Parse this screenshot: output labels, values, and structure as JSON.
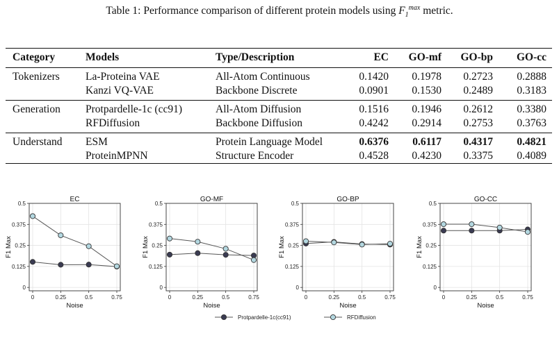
{
  "caption": {
    "prefix": "Table 1: Performance comparison of different protein models using ",
    "metric_base": "F",
    "metric_sub": "1",
    "metric_sup": "max",
    "suffix": " metric."
  },
  "table": {
    "headers": [
      "Category",
      "Models",
      "Type/Description",
      "EC",
      "GO-mf",
      "GO-bp",
      "GO-cc"
    ],
    "groups": [
      {
        "category": "Tokenizers",
        "rows": [
          {
            "model": "La-Proteina VAE",
            "type": "All-Atom Continuous",
            "values": [
              "0.1420",
              "0.1978",
              "0.2723",
              "0.2888"
            ],
            "bold": [
              false,
              false,
              false,
              false
            ]
          },
          {
            "model": "Kanzi VQ-VAE",
            "type": "Backbone Discrete",
            "values": [
              "0.0901",
              "0.1530",
              "0.2489",
              "0.3183"
            ],
            "bold": [
              false,
              false,
              false,
              false
            ]
          }
        ]
      },
      {
        "category": "Generation",
        "rows": [
          {
            "model": "Protpardelle-1c (cc91)",
            "type": "All-Atom Diffusion",
            "values": [
              "0.1516",
              "0.1946",
              "0.2612",
              "0.3380"
            ],
            "bold": [
              false,
              false,
              false,
              false
            ]
          },
          {
            "model": "RFDiffusion",
            "type": "Backbone Diffusion",
            "values": [
              "0.4242",
              "0.2914",
              "0.2753",
              "0.3763"
            ],
            "bold": [
              false,
              false,
              false,
              false
            ]
          }
        ]
      },
      {
        "category": "Understand",
        "rows": [
          {
            "model": "ESM",
            "type": "Protein Language Model",
            "values": [
              "0.6376",
              "0.6117",
              "0.4317",
              "0.4821"
            ],
            "bold": [
              true,
              true,
              true,
              true
            ]
          },
          {
            "model": "ProteinMPNN",
            "type": "Structure Encoder",
            "values": [
              "0.4528",
              "0.4230",
              "0.3375",
              "0.4089"
            ],
            "bold": [
              false,
              false,
              false,
              false
            ]
          }
        ]
      }
    ]
  },
  "chart_data": [
    {
      "type": "line",
      "title": "EC",
      "xlabel": "Noise",
      "ylabel": "F1 Max",
      "x": [
        0,
        0.25,
        0.5,
        0.75
      ],
      "ylim": [
        -0.02,
        0.5
      ],
      "xticks": [
        "0",
        "0.25",
        "0.5",
        "0.75"
      ],
      "yticks": [
        "0",
        "0.125",
        "0.25",
        "0.375",
        "0.5"
      ],
      "grid": true,
      "series": [
        {
          "name": "Protpardelle-1c(cc91)",
          "values": [
            0.152,
            0.135,
            0.136,
            0.124
          ],
          "color": "#3a3b52"
        },
        {
          "name": "RFDiffusion",
          "values": [
            0.424,
            0.31,
            0.245,
            0.126
          ],
          "color": "#b3d7e0"
        }
      ]
    },
    {
      "type": "line",
      "title": "GO-MF",
      "xlabel": "Noise",
      "ylabel": "F1 Max",
      "x": [
        0,
        0.25,
        0.5,
        0.75
      ],
      "ylim": [
        -0.02,
        0.5
      ],
      "xticks": [
        "0",
        "0.25",
        "0.5",
        "0.75"
      ],
      "yticks": [
        "0",
        "0.125",
        "0.25",
        "0.375",
        "0.5"
      ],
      "grid": true,
      "series": [
        {
          "name": "Protpardelle-1c(cc91)",
          "values": [
            0.195,
            0.204,
            0.194,
            0.19
          ],
          "color": "#3a3b52"
        },
        {
          "name": "RFDiffusion",
          "values": [
            0.291,
            0.272,
            0.23,
            0.163
          ],
          "color": "#b3d7e0"
        }
      ]
    },
    {
      "type": "line",
      "title": "GO-BP",
      "xlabel": "Noise",
      "ylabel": "F1 Max",
      "x": [
        0,
        0.25,
        0.5,
        0.75
      ],
      "ylim": [
        -0.02,
        0.5
      ],
      "xticks": [
        "0",
        "0.25",
        "0.5",
        "0.75"
      ],
      "yticks": [
        "0",
        "0.125",
        "0.25",
        "0.375",
        "0.5"
      ],
      "grid": true,
      "series": [
        {
          "name": "Protpardelle-1c(cc91)",
          "values": [
            0.261,
            0.271,
            0.258,
            0.255
          ],
          "color": "#3a3b52"
        },
        {
          "name": "RFDiffusion",
          "values": [
            0.275,
            0.268,
            0.255,
            0.26
          ],
          "color": "#b3d7e0"
        }
      ]
    },
    {
      "type": "line",
      "title": "GO-CC",
      "xlabel": "Noise",
      "ylabel": "F1 Max",
      "x": [
        0,
        0.25,
        0.5,
        0.75
      ],
      "ylim": [
        -0.02,
        0.5
      ],
      "xticks": [
        "0",
        "0.25",
        "0.5",
        "0.75"
      ],
      "yticks": [
        "0",
        "0.125",
        "0.25",
        "0.375",
        "0.5"
      ],
      "grid": true,
      "series": [
        {
          "name": "Protpardelle-1c(cc91)",
          "values": [
            0.338,
            0.338,
            0.338,
            0.345
          ],
          "color": "#3a3b52"
        },
        {
          "name": "RFDiffusion",
          "values": [
            0.376,
            0.376,
            0.356,
            0.33
          ],
          "color": "#b3d7e0"
        }
      ]
    }
  ],
  "legend": {
    "placement": "bottom-center",
    "items": [
      {
        "label": "Protpardelle-1c(cc91)",
        "color": "#3a3b52"
      },
      {
        "label": "RFDiffusion",
        "color": "#b3d7e0"
      }
    ]
  }
}
